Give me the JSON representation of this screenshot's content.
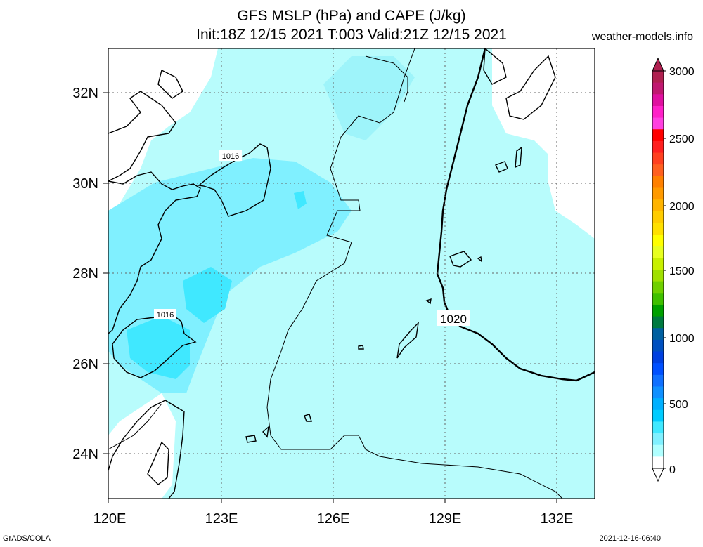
{
  "header": {
    "title_line1": "GFS MSLP (hPa) and CAPE (J/kg)",
    "title_line2": "Init:18Z 12/15 2021 T:003 Valid:21Z 12/15 2021",
    "site": "weather-models.info"
  },
  "map": {
    "lon_labels": [
      "120E",
      "123E",
      "126E",
      "129E",
      "132E"
    ],
    "lat_labels": [
      "32N",
      "30N",
      "28N",
      "26N",
      "24N"
    ],
    "isobar_labels": [
      "1016",
      "1016",
      "1020"
    ]
  },
  "colorbar": {
    "labels": [
      "3000",
      "2500",
      "2000",
      "1500",
      "1000",
      "500",
      "0"
    ],
    "colors": [
      "#b02050",
      "#c01870",
      "#e010a0",
      "#ff20c8",
      "#ff40e0",
      "#ff0000",
      "#ff2020",
      "#ff4020",
      "#ff6020",
      "#ff8000",
      "#ff9a00",
      "#ffb400",
      "#ffcc00",
      "#ffe000",
      "#ffff00",
      "#e8ff20",
      "#c8f000",
      "#a0e000",
      "#70d000",
      "#40c000",
      "#00a000",
      "#007a40",
      "#0060a0",
      "#0050c0",
      "#0040e0",
      "#0050ff",
      "#1070ff",
      "#1090ff",
      "#00b0ff",
      "#00ccff",
      "#40e8ff",
      "#80f0ff",
      "#b0ffff",
      "#ffffff"
    ]
  },
  "footer": {
    "left": "GrADS/COLA",
    "right": "2021-12-16-06:40"
  }
}
